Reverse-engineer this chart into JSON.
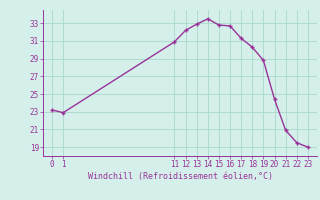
{
  "x": [
    0,
    1,
    11,
    12,
    13,
    14,
    15,
    16,
    17,
    18,
    19,
    20,
    21,
    22,
    23
  ],
  "y": [
    23.2,
    22.9,
    30.9,
    32.2,
    32.9,
    33.5,
    32.8,
    32.7,
    31.3,
    30.3,
    28.8,
    24.4,
    20.9,
    19.5,
    19.0
  ],
  "line_color": "#993399",
  "marker_color": "#993399",
  "bg_color": "#d5f0eb",
  "grid_color": "#aad8cc",
  "tick_color": "#993399",
  "xlabel": "Windchill (Refroidissement éolien,°C)",
  "xlim": [
    -0.8,
    23.8
  ],
  "ylim": [
    18.0,
    34.5
  ],
  "yticks": [
    19,
    21,
    23,
    25,
    27,
    29,
    31,
    33
  ],
  "xticks": [
    0,
    1,
    11,
    12,
    13,
    14,
    15,
    16,
    17,
    18,
    19,
    20,
    21,
    22,
    23
  ],
  "title_fontsize": 6,
  "tick_fontsize": 5.5
}
